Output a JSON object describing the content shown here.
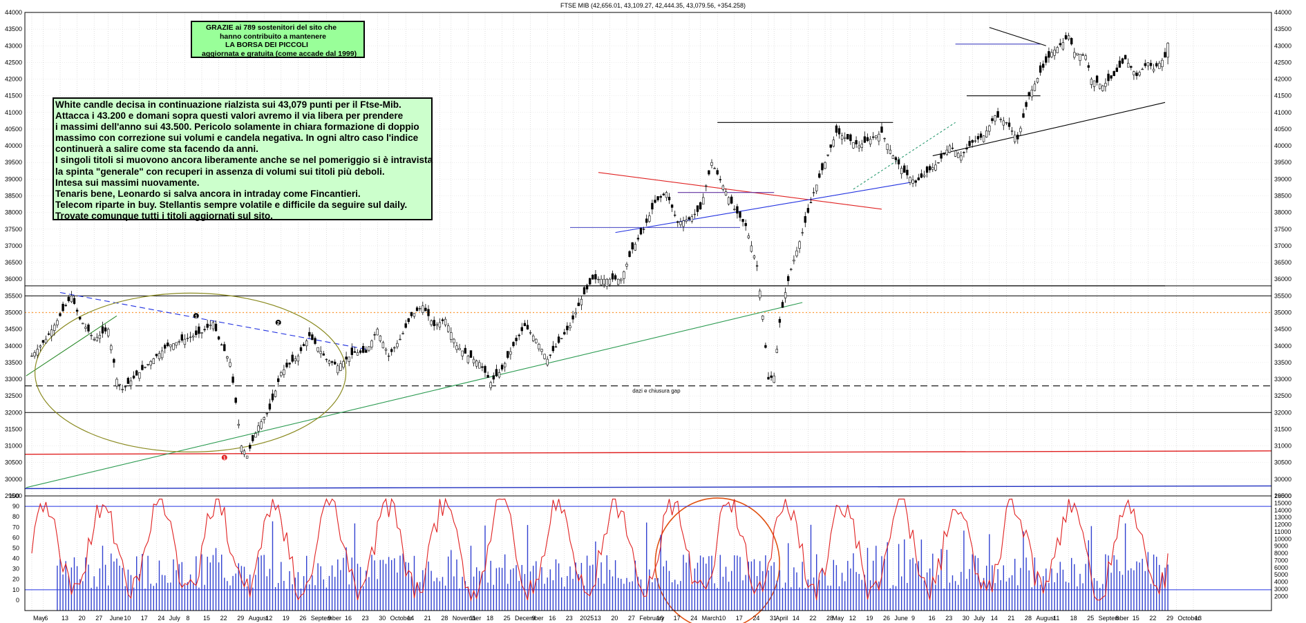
{
  "header": {
    "title": "FTSE MIB (42,656.01, 43,109.27, 42,444.35, 43,079.56, +354.258)"
  },
  "notes": {
    "thanks": [
      "GRAZIE ai 789 sostenitori del sito che",
      "hanno contribuito a mantenere",
      "LA BORSA DEI PICCOLI",
      "aggiornata e gratuita (come accade dal 1999)"
    ],
    "comment": [
      "White candle decisa in continuazione rialzista sui 43,079 punti per il Ftse-Mib.",
      "Attacca i 43.200 e domani sopra questi valori avremo il via libera per prendere",
      "i massimi dell'anno sui 43.500. Pericolo solamente in chiara formazione di doppio",
      "massimo con correzione sui volumi e candela negativa. In ogni altro caso l'indice",
      "continuerà a salire come sta facendo da anni.",
      "I singoli titoli si muovono ancora liberamente anche se nel pomeriggio si è intravista",
      "la spinta \"generale\" con recuperi in assenza di volumi sui titoli più deboli.",
      "Intesa sui massimi nuovamente.",
      "Tenaris bene, Leonardo si salva ancora in intraday come Fincantieri.",
      "Telecom riparte in buy. Stellantis sempre volatile e difficile da seguire sul daily.",
      "Trovate comunque tutti i titoli aggiornati sul sito."
    ],
    "gap_label": "dazi e chiusura gap",
    "markers": [
      "1",
      "2",
      "1"
    ]
  },
  "chart_data": [
    {
      "type": "candlestick",
      "title": "FTSE MIB (42,656.01, 43,109.27, 42,444.35, 43,079.56, +354.258)",
      "ylim": [
        29500,
        44000
      ],
      "y_ticks": [
        29500,
        30000,
        30500,
        31000,
        31500,
        32000,
        32500,
        33000,
        33500,
        34000,
        34500,
        35000,
        35500,
        36000,
        36500,
        37000,
        37500,
        38000,
        38500,
        39000,
        39500,
        40000,
        40500,
        41000,
        41500,
        42000,
        42500,
        43000,
        43500,
        44000
      ],
      "x_ticks": [
        "May",
        "6",
        "13",
        "20",
        "27",
        "June",
        "10",
        "17",
        "24",
        "July",
        "8",
        "15",
        "22",
        "29",
        "August",
        "12",
        "19",
        "26",
        "September",
        "9",
        "16",
        "23",
        "30",
        "October",
        "14",
        "21",
        "28",
        "November",
        "11",
        "18",
        "25",
        "December",
        "9",
        "16",
        "23",
        "2025",
        "13",
        "20",
        "27",
        "February",
        "10",
        "17",
        "24",
        "March",
        "10",
        "17",
        "24",
        "31",
        "April",
        "14",
        "22",
        "28",
        "May",
        "12",
        "19",
        "26",
        "June",
        "9",
        "16",
        "23",
        "30",
        "July",
        "14",
        "21",
        "28",
        "August",
        "11",
        "18",
        "25",
        "September",
        "8",
        "15",
        "22",
        "29",
        "October",
        "13"
      ],
      "x_tick_pos": [
        0.0,
        4,
        10,
        16,
        22,
        27,
        32,
        38,
        44,
        48,
        54,
        60,
        66,
        72,
        76,
        82,
        88,
        94,
        98,
        104,
        110,
        116,
        122,
        126,
        132,
        138,
        144,
        148,
        154,
        160,
        166,
        170,
        176,
        182,
        188,
        193,
        198,
        204,
        210,
        214,
        220,
        226,
        232,
        236,
        242,
        248,
        254,
        260,
        262,
        268,
        274,
        280,
        282,
        288,
        294,
        300,
        304,
        310,
        316,
        322,
        328,
        332,
        338,
        344,
        350,
        354,
        360,
        366,
        372,
        376,
        382,
        388,
        394,
        400,
        404,
        410
      ],
      "price_path": [
        [
          0,
          33700
        ],
        [
          5,
          34200
        ],
        [
          10,
          34900
        ],
        [
          14,
          35500
        ],
        [
          17,
          34800
        ],
        [
          22,
          34200
        ],
        [
          27,
          34500
        ],
        [
          30,
          33000
        ],
        [
          32,
          32700
        ],
        [
          38,
          33200
        ],
        [
          44,
          33700
        ],
        [
          48,
          34000
        ],
        [
          54,
          34200
        ],
        [
          60,
          34400
        ],
        [
          64,
          34700
        ],
        [
          66,
          34200
        ],
        [
          70,
          33500
        ],
        [
          72,
          32300
        ],
        [
          74,
          31000
        ],
        [
          76,
          30700
        ],
        [
          80,
          31600
        ],
        [
          84,
          32100
        ],
        [
          88,
          33200
        ],
        [
          94,
          33700
        ],
        [
          98,
          34300
        ],
        [
          104,
          33600
        ],
        [
          108,
          33400
        ],
        [
          114,
          33800
        ],
        [
          118,
          33800
        ],
        [
          122,
          34500
        ],
        [
          126,
          33700
        ],
        [
          130,
          34200
        ],
        [
          134,
          34900
        ],
        [
          138,
          35200
        ],
        [
          142,
          34600
        ],
        [
          146,
          34800
        ],
        [
          150,
          34000
        ],
        [
          154,
          33700
        ],
        [
          158,
          33500
        ],
        [
          162,
          32900
        ],
        [
          166,
          33300
        ],
        [
          170,
          34000
        ],
        [
          174,
          34600
        ],
        [
          178,
          34200
        ],
        [
          182,
          33600
        ],
        [
          186,
          34100
        ],
        [
          190,
          34600
        ],
        [
          194,
          35400
        ],
        [
          198,
          36000
        ],
        [
          202,
          36000
        ],
        [
          208,
          36000
        ],
        [
          212,
          36900
        ],
        [
          216,
          37500
        ],
        [
          220,
          38300
        ],
        [
          224,
          38600
        ],
        [
          228,
          37700
        ],
        [
          232,
          37800
        ],
        [
          236,
          38100
        ],
        [
          240,
          39500
        ],
        [
          244,
          38800
        ],
        [
          248,
          38100
        ],
        [
          252,
          37600
        ],
        [
          256,
          36400
        ],
        [
          258,
          34900
        ],
        [
          260,
          33000
        ],
        [
          262,
          33100
        ],
        [
          264,
          34700
        ],
        [
          266,
          35600
        ],
        [
          268,
          36300
        ],
        [
          272,
          37400
        ],
        [
          276,
          38600
        ],
        [
          280,
          39500
        ],
        [
          284,
          40400
        ],
        [
          288,
          40200
        ],
        [
          292,
          40000
        ],
        [
          296,
          40200
        ],
        [
          300,
          40400
        ],
        [
          304,
          39700
        ],
        [
          308,
          39200
        ],
        [
          312,
          38900
        ],
        [
          316,
          39200
        ],
        [
          320,
          39500
        ],
        [
          324,
          40000
        ],
        [
          328,
          39700
        ],
        [
          332,
          40100
        ],
        [
          336,
          40300
        ],
        [
          340,
          40900
        ],
        [
          344,
          40700
        ],
        [
          348,
          40200
        ],
        [
          352,
          41500
        ],
        [
          356,
          42200
        ],
        [
          360,
          42800
        ],
        [
          364,
          43100
        ],
        [
          366,
          43300
        ],
        [
          368,
          42800
        ],
        [
          372,
          42700
        ],
        [
          374,
          42000
        ],
        [
          378,
          41800
        ],
        [
          382,
          42100
        ],
        [
          386,
          42600
        ],
        [
          390,
          42100
        ],
        [
          394,
          42500
        ],
        [
          396,
          42300
        ],
        [
          400,
          42656
        ]
      ],
      "last_bar": {
        "open": 42656.01,
        "high": 43109.27,
        "low": 42444.35,
        "close": 43079.56,
        "change": 354.258
      },
      "horizontal_lines": [
        {
          "y": 35500,
          "color": "#000000",
          "style": "solid"
        },
        {
          "y": 35800,
          "color": "#000000",
          "style": "solid"
        },
        {
          "y": 35000,
          "color": "#ff9933",
          "style": "dotted"
        },
        {
          "y": 32800,
          "color": "#000000",
          "style": "dashed"
        },
        {
          "y": 32000,
          "color": "#000000",
          "style": "solid"
        }
      ]
    },
    {
      "type": "line",
      "name": "oscillator",
      "ylim": [
        -10,
        100
      ],
      "y_ticks": [
        0,
        10,
        20,
        30,
        40,
        50,
        60,
        70,
        80,
        90,
        100
      ],
      "ref_lines": [
        90,
        10
      ]
    },
    {
      "type": "bar",
      "name": "volume",
      "ylim": [
        0,
        16000
      ],
      "y_ticks": [
        2000,
        3000,
        4000,
        5000,
        6000,
        7000,
        8000,
        9000,
        10000,
        11000,
        12000,
        13000,
        14000,
        15000,
        16000
      ]
    }
  ]
}
